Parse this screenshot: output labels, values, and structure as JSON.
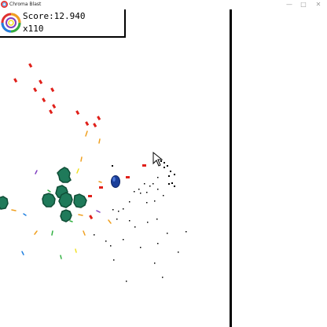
{
  "window": {
    "title": "Chroma Blast"
  },
  "hud": {
    "score_label": "Score:",
    "score_value": "12.940",
    "multiplier": "x110"
  },
  "icons": {
    "app": "chroma-ring-icon",
    "minimize": "minimize-icon",
    "maximize": "maximize-icon",
    "close": "close-icon",
    "cursor": "aim-cursor-icon"
  },
  "colors": {
    "enemy": "#1f7a5a",
    "enemy_edge": "#0f4d36",
    "player": "#1b3f9a",
    "bullet_red": "#e0201a",
    "ring": [
      "#e03030",
      "#f0a020",
      "#f0e020",
      "#30b040",
      "#2080e0",
      "#8040c0"
    ]
  }
}
